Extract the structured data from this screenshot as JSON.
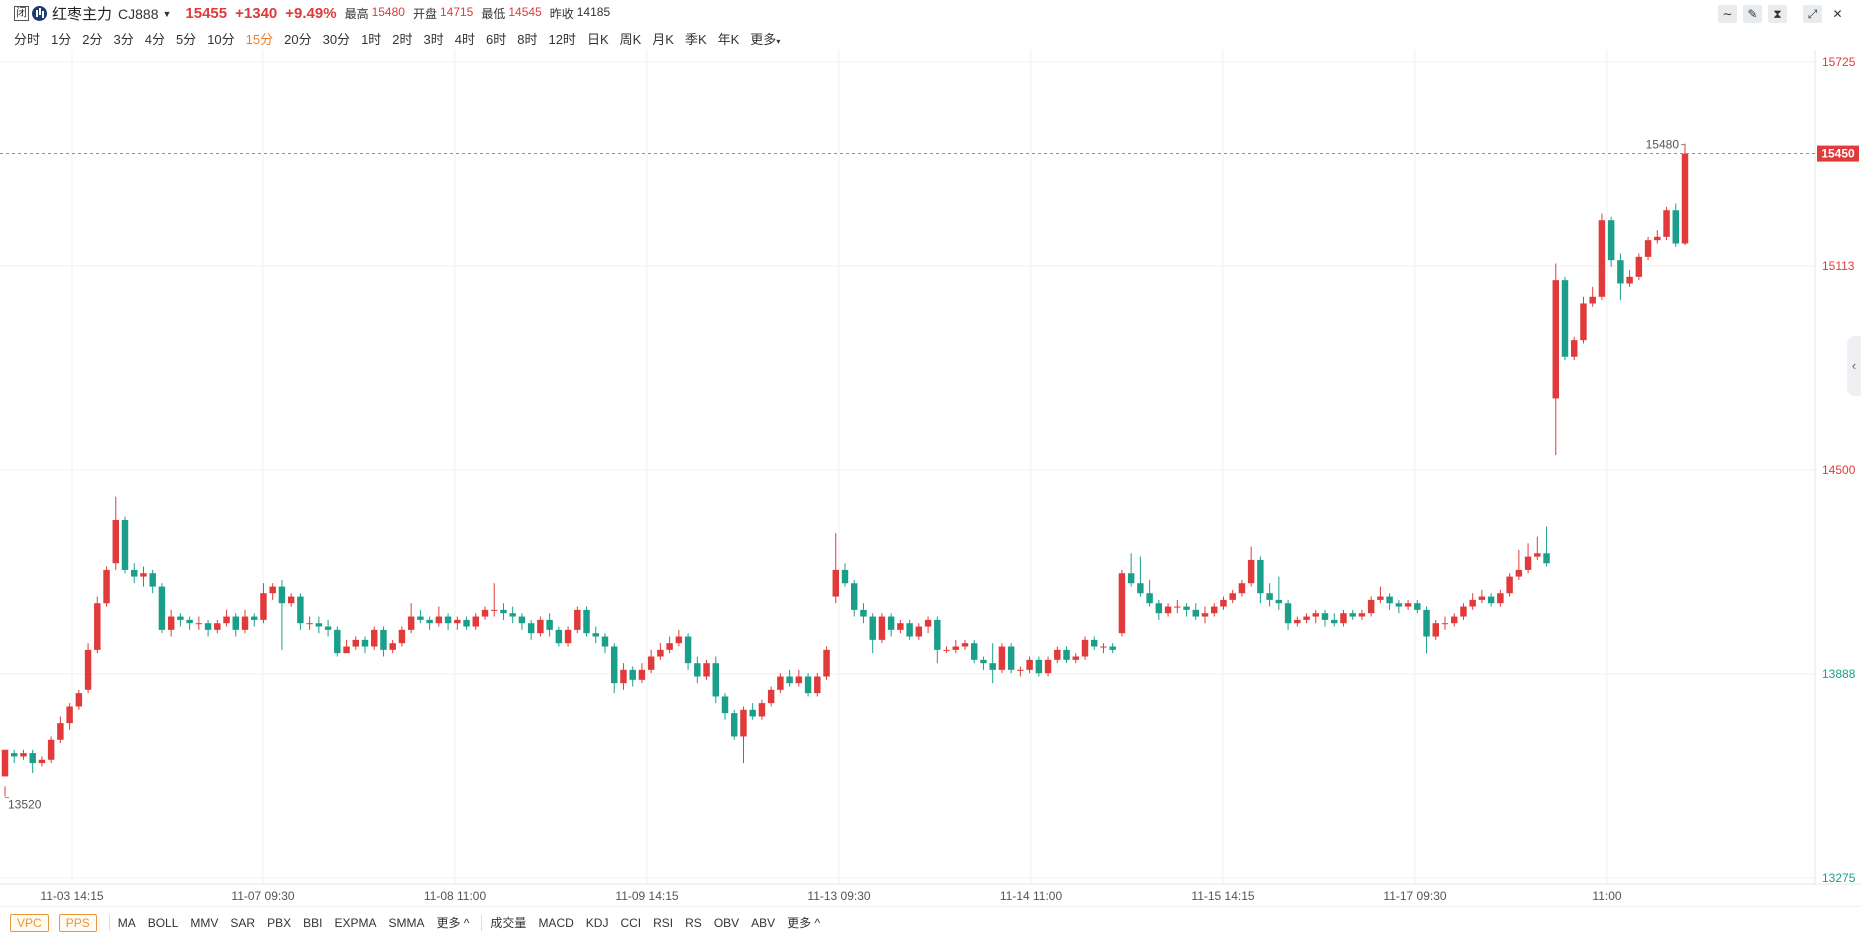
{
  "header": {
    "status_badge": "闭",
    "name": "红枣主力",
    "code": "CJ888",
    "price": "15455",
    "change": "+1340",
    "change_pct": "+9.49%",
    "stats": [
      {
        "label": "最高",
        "value": "15480",
        "color": "up"
      },
      {
        "label": "开盘",
        "value": "14715",
        "color": "up"
      },
      {
        "label": "最低",
        "value": "14545",
        "color": "up"
      },
      {
        "label": "昨收",
        "value": "14185",
        "color": "neutral"
      }
    ],
    "tools": [
      {
        "name": "line-tool-icon",
        "glyph": "∼"
      },
      {
        "name": "pen-tool-icon",
        "glyph": "✎"
      },
      {
        "name": "candle-style-icon",
        "glyph": "⧗"
      },
      {
        "name": "expand-icon",
        "glyph": "⤢"
      },
      {
        "name": "close-icon",
        "glyph": "✕"
      }
    ]
  },
  "periods": [
    "分时",
    "1分",
    "2分",
    "3分",
    "4分",
    "5分",
    "10分",
    "15分",
    "20分",
    "30分",
    "1时",
    "2时",
    "3时",
    "4时",
    "6时",
    "8时",
    "12时",
    "日K",
    "周K",
    "月K",
    "季K",
    "年K",
    "更多"
  ],
  "active_period": "15分",
  "colors": {
    "up": "#e03a3a",
    "down": "#1aa08a",
    "neutral": "#333333",
    "accent": "#f07d2b"
  },
  "footer": {
    "volume_tools": [
      "VPC",
      "PPS"
    ],
    "main_indicators": [
      "MA",
      "BOLL",
      "MMV",
      "SAR",
      "PBX",
      "BBI",
      "EXPMA",
      "SMMA",
      "更多 ^"
    ],
    "sub_indicators": [
      "成交量",
      "MACD",
      "KDJ",
      "CCI",
      "RSI",
      "RS",
      "OBV",
      "ABV",
      "更多 ^"
    ]
  },
  "chart_data": {
    "type": "candlestick",
    "y_ticks": [
      "15725",
      "15113",
      "14500",
      "13888",
      "13275"
    ],
    "ylim": [
      13275,
      15725
    ],
    "x_ticks": [
      "11-03 14:15",
      "11-07 09:30",
      "11-08 11:00",
      "11-09 14:15",
      "11-13 09:30",
      "11-14 11:00",
      "11-15 14:15",
      "11-17 09:30",
      "11:00"
    ],
    "last_price": "15450",
    "max_label": "15480",
    "min_label": "13520",
    "bars": [
      [
        13580,
        13660,
        13550,
        13520
      ],
      [
        13650,
        13640,
        13660,
        13620
      ],
      [
        13640,
        13650,
        13660,
        13630
      ],
      [
        13650,
        13620,
        13660,
        13590
      ],
      [
        13620,
        13630,
        13640,
        13610
      ],
      [
        13630,
        13690,
        13700,
        13620
      ],
      [
        13690,
        13740,
        13760,
        13680
      ],
      [
        13740,
        13790,
        13800,
        13720
      ],
      [
        13790,
        13830,
        13840,
        13780
      ],
      [
        13840,
        13960,
        13980,
        13830
      ],
      [
        13960,
        14100,
        14120,
        13950
      ],
      [
        14100,
        14200,
        14210,
        14090
      ],
      [
        14220,
        14350,
        14420,
        14200
      ],
      [
        14350,
        14200,
        14360,
        14190
      ],
      [
        14200,
        14180,
        14220,
        14160
      ],
      [
        14180,
        14190,
        14210,
        14150
      ],
      [
        14190,
        14150,
        14200,
        14130
      ],
      [
        14150,
        14020,
        14160,
        14010
      ],
      [
        14020,
        14060,
        14080,
        14000
      ],
      [
        14060,
        14050,
        14070,
        14030
      ],
      [
        14050,
        14040,
        14060,
        14020
      ],
      [
        14040,
        14040,
        14060,
        14020
      ],
      [
        14040,
        14020,
        14050,
        14000
      ],
      [
        14020,
        14040,
        14050,
        14010
      ],
      [
        14040,
        14060,
        14080,
        14030
      ],
      [
        14060,
        14020,
        14070,
        14000
      ],
      [
        14020,
        14060,
        14080,
        14010
      ],
      [
        14060,
        14050,
        14070,
        14030
      ],
      [
        14050,
        14130,
        14160,
        14040
      ],
      [
        14130,
        14150,
        14160,
        14110
      ],
      [
        14150,
        14100,
        14170,
        13960
      ],
      [
        14100,
        14120,
        14130,
        14090
      ],
      [
        14120,
        14040,
        14130,
        14020
      ],
      [
        14040,
        14040,
        14060,
        14020
      ],
      [
        14040,
        14030,
        14060,
        14010
      ],
      [
        14030,
        14020,
        14050,
        14000
      ],
      [
        14020,
        13950,
        14030,
        13940
      ],
      [
        13950,
        13970,
        13990,
        13950
      ],
      [
        13970,
        13990,
        14000,
        13960
      ],
      [
        13990,
        13970,
        14000,
        13950
      ],
      [
        13970,
        14020,
        14030,
        13960
      ],
      [
        14020,
        13960,
        14030,
        13940
      ],
      [
        13960,
        13980,
        13990,
        13950
      ],
      [
        13980,
        14020,
        14030,
        13970
      ],
      [
        14020,
        14060,
        14100,
        14010
      ],
      [
        14060,
        14050,
        14080,
        14040
      ],
      [
        14050,
        14040,
        14060,
        14020
      ],
      [
        14040,
        14060,
        14090,
        14030
      ],
      [
        14060,
        14040,
        14070,
        14020
      ],
      [
        14040,
        14050,
        14060,
        14020
      ],
      [
        14050,
        14030,
        14060,
        14020
      ],
      [
        14030,
        14060,
        14070,
        14020
      ],
      [
        14060,
        14080,
        14090,
        14050
      ],
      [
        14080,
        14080,
        14160,
        14060
      ],
      [
        14080,
        14070,
        14100,
        14050
      ],
      [
        14070,
        14060,
        14090,
        14040
      ],
      [
        14060,
        14040,
        14070,
        14020
      ],
      [
        14040,
        14010,
        14050,
        13990
      ],
      [
        14010,
        14050,
        14060,
        14000
      ],
      [
        14050,
        14020,
        14070,
        14000
      ],
      [
        14020,
        13980,
        14030,
        13970
      ],
      [
        13980,
        14020,
        14030,
        13970
      ],
      [
        14020,
        14080,
        14090,
        14010
      ],
      [
        14080,
        14010,
        14090,
        14000
      ],
      [
        14010,
        14000,
        14030,
        13980
      ],
      [
        14000,
        13970,
        14010,
        13950
      ],
      [
        13970,
        13860,
        13980,
        13830
      ],
      [
        13860,
        13900,
        13920,
        13840
      ],
      [
        13900,
        13870,
        13910,
        13850
      ],
      [
        13870,
        13900,
        13920,
        13860
      ],
      [
        13900,
        13940,
        13960,
        13890
      ],
      [
        13940,
        13960,
        13980,
        13930
      ],
      [
        13960,
        13980,
        14000,
        13950
      ],
      [
        13980,
        14000,
        14020,
        13970
      ],
      [
        14000,
        13920,
        14010,
        13900
      ],
      [
        13920,
        13880,
        13940,
        13860
      ],
      [
        13880,
        13920,
        13930,
        13870
      ],
      [
        13920,
        13820,
        13940,
        13800
      ],
      [
        13820,
        13770,
        13830,
        13750
      ],
      [
        13770,
        13700,
        13780,
        13690
      ],
      [
        13700,
        13780,
        13790,
        13620
      ],
      [
        13780,
        13760,
        13800,
        13750
      ],
      [
        13760,
        13800,
        13810,
        13750
      ],
      [
        13800,
        13840,
        13850,
        13790
      ],
      [
        13840,
        13880,
        13890,
        13830
      ],
      [
        13880,
        13860,
        13900,
        13850
      ],
      [
        13860,
        13880,
        13900,
        13850
      ],
      [
        13880,
        13830,
        13890,
        13820
      ],
      [
        13830,
        13880,
        13890,
        13820
      ],
      [
        13880,
        13960,
        13970,
        13870
      ],
      [
        14120,
        14200,
        14310,
        14100
      ],
      [
        14200,
        14160,
        14220,
        14150
      ],
      [
        14160,
        14080,
        14170,
        14060
      ],
      [
        14080,
        14060,
        14100,
        14040
      ],
      [
        14060,
        13990,
        14070,
        13950
      ],
      [
        13990,
        14060,
        14070,
        13980
      ],
      [
        14060,
        14020,
        14070,
        14000
      ],
      [
        14020,
        14040,
        14050,
        14010
      ],
      [
        14040,
        14000,
        14050,
        13990
      ],
      [
        14000,
        14030,
        14040,
        13990
      ],
      [
        14030,
        14050,
        14060,
        14010
      ],
      [
        14050,
        13960,
        14060,
        13920
      ],
      [
        13960,
        13960,
        13970,
        13950
      ],
      [
        13960,
        13970,
        13990,
        13950
      ],
      [
        13970,
        13980,
        13990,
        13960
      ],
      [
        13980,
        13930,
        13990,
        13920
      ],
      [
        13930,
        13920,
        13940,
        13900
      ],
      [
        13920,
        13900,
        13980,
        13860
      ],
      [
        13900,
        13970,
        13980,
        13890
      ],
      [
        13970,
        13900,
        13980,
        13890
      ],
      [
        13900,
        13900,
        13910,
        13880
      ],
      [
        13900,
        13930,
        13940,
        13890
      ],
      [
        13930,
        13890,
        13940,
        13880
      ],
      [
        13890,
        13930,
        13940,
        13880
      ],
      [
        13930,
        13960,
        13970,
        13920
      ],
      [
        13960,
        13930,
        13970,
        13920
      ],
      [
        13930,
        13940,
        13950,
        13920
      ],
      [
        13940,
        13990,
        14000,
        13930
      ],
      [
        13990,
        13970,
        14000,
        13960
      ],
      [
        13970,
        13970,
        13980,
        13950
      ],
      [
        13970,
        13960,
        13980,
        13950
      ],
      [
        14010,
        14190,
        14200,
        14000
      ],
      [
        14190,
        14160,
        14250,
        14150
      ],
      [
        14160,
        14130,
        14240,
        14120
      ],
      [
        14130,
        14100,
        14170,
        14090
      ],
      [
        14100,
        14070,
        14110,
        14050
      ],
      [
        14070,
        14090,
        14100,
        14060
      ],
      [
        14090,
        14090,
        14110,
        14070
      ],
      [
        14090,
        14080,
        14100,
        14060
      ],
      [
        14080,
        14060,
        14100,
        14050
      ],
      [
        14060,
        14070,
        14090,
        14040
      ],
      [
        14070,
        14090,
        14100,
        14060
      ],
      [
        14090,
        14110,
        14120,
        14080
      ],
      [
        14110,
        14130,
        14140,
        14100
      ],
      [
        14130,
        14160,
        14170,
        14120
      ],
      [
        14160,
        14230,
        14270,
        14150
      ],
      [
        14230,
        14130,
        14240,
        14100
      ],
      [
        14130,
        14110,
        14160,
        14090
      ],
      [
        14110,
        14100,
        14180,
        14080
      ],
      [
        14100,
        14040,
        14110,
        14020
      ],
      [
        14040,
        14050,
        14060,
        14030
      ],
      [
        14050,
        14060,
        14070,
        14040
      ],
      [
        14060,
        14070,
        14080,
        14040
      ],
      [
        14070,
        14050,
        14080,
        14030
      ],
      [
        14050,
        14040,
        14070,
        14030
      ],
      [
        14040,
        14070,
        14080,
        14030
      ],
      [
        14070,
        14060,
        14080,
        14050
      ],
      [
        14060,
        14070,
        14080,
        14050
      ],
      [
        14070,
        14110,
        14120,
        14060
      ],
      [
        14110,
        14120,
        14150,
        14100
      ],
      [
        14120,
        14100,
        14130,
        14080
      ],
      [
        14100,
        14090,
        14110,
        14070
      ],
      [
        14090,
        14100,
        14110,
        14080
      ],
      [
        14100,
        14080,
        14110,
        14070
      ],
      [
        14080,
        14000,
        14090,
        13950
      ],
      [
        14000,
        14040,
        14050,
        13990
      ],
      [
        14040,
        14040,
        14060,
        14020
      ],
      [
        14040,
        14060,
        14070,
        14030
      ],
      [
        14060,
        14090,
        14100,
        14050
      ],
      [
        14090,
        14110,
        14130,
        14080
      ],
      [
        14110,
        14120,
        14140,
        14100
      ],
      [
        14120,
        14100,
        14130,
        14090
      ],
      [
        14100,
        14130,
        14140,
        14090
      ],
      [
        14130,
        14180,
        14190,
        14120
      ],
      [
        14180,
        14200,
        14260,
        14170
      ],
      [
        14200,
        14240,
        14280,
        14190
      ],
      [
        14240,
        14250,
        14300,
        14230
      ],
      [
        14250,
        14220,
        14330,
        14210
      ],
      [
        14715,
        15070,
        15120,
        14545
      ],
      [
        15070,
        14840,
        15080,
        14830
      ],
      [
        14840,
        14890,
        14900,
        14830
      ],
      [
        14890,
        15000,
        15020,
        14880
      ],
      [
        15000,
        15020,
        15050,
        14990
      ],
      [
        15020,
        15250,
        15270,
        15010
      ],
      [
        15250,
        15130,
        15260,
        15110
      ],
      [
        15130,
        15060,
        15150,
        15010
      ],
      [
        15060,
        15080,
        15100,
        15050
      ],
      [
        15080,
        15140,
        15150,
        15070
      ],
      [
        15140,
        15190,
        15200,
        15130
      ],
      [
        15190,
        15200,
        15220,
        15180
      ],
      [
        15200,
        15280,
        15290,
        15190
      ],
      [
        15280,
        15180,
        15300,
        15170
      ],
      [
        15180,
        15450,
        15480,
        15175
      ]
    ]
  }
}
